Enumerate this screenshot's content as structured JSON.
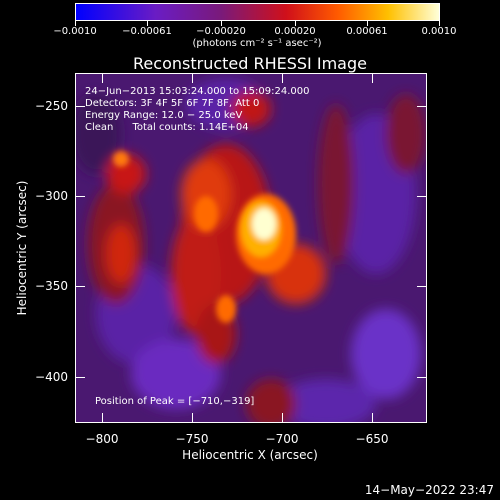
{
  "colorbar": {
    "tick_labels": [
      "−0.0010",
      "−0.00061",
      "−0.00020",
      "0.00020",
      "0.00061",
      "0.0010"
    ],
    "units": "(photons cm⁻² s⁻¹ asec⁻²)"
  },
  "title": "Reconstructed RHESSI Image",
  "info": {
    "time": "24−Jun−2013 15:03:24.000 to 15:09:24.000",
    "detectors": "Detectors: 3F 4F 5F 6F 7F 8F, Att 0",
    "energy": "Energy Range: 12.0 − 25.0 keV",
    "clean": "Clean      Total counts: 1.14E+04"
  },
  "peak": "Position of Peak = [−710,−319]",
  "axes": {
    "xlabel": "Heliocentric X (arcsec)",
    "ylabel": "Heliocentric Y (arcsec)",
    "x_ticks": [
      "−800",
      "−750",
      "−700",
      "−650"
    ],
    "y_ticks": [
      "−250",
      "−300",
      "−350",
      "−400"
    ]
  },
  "timestamp": "14−May−2022 23:47"
}
